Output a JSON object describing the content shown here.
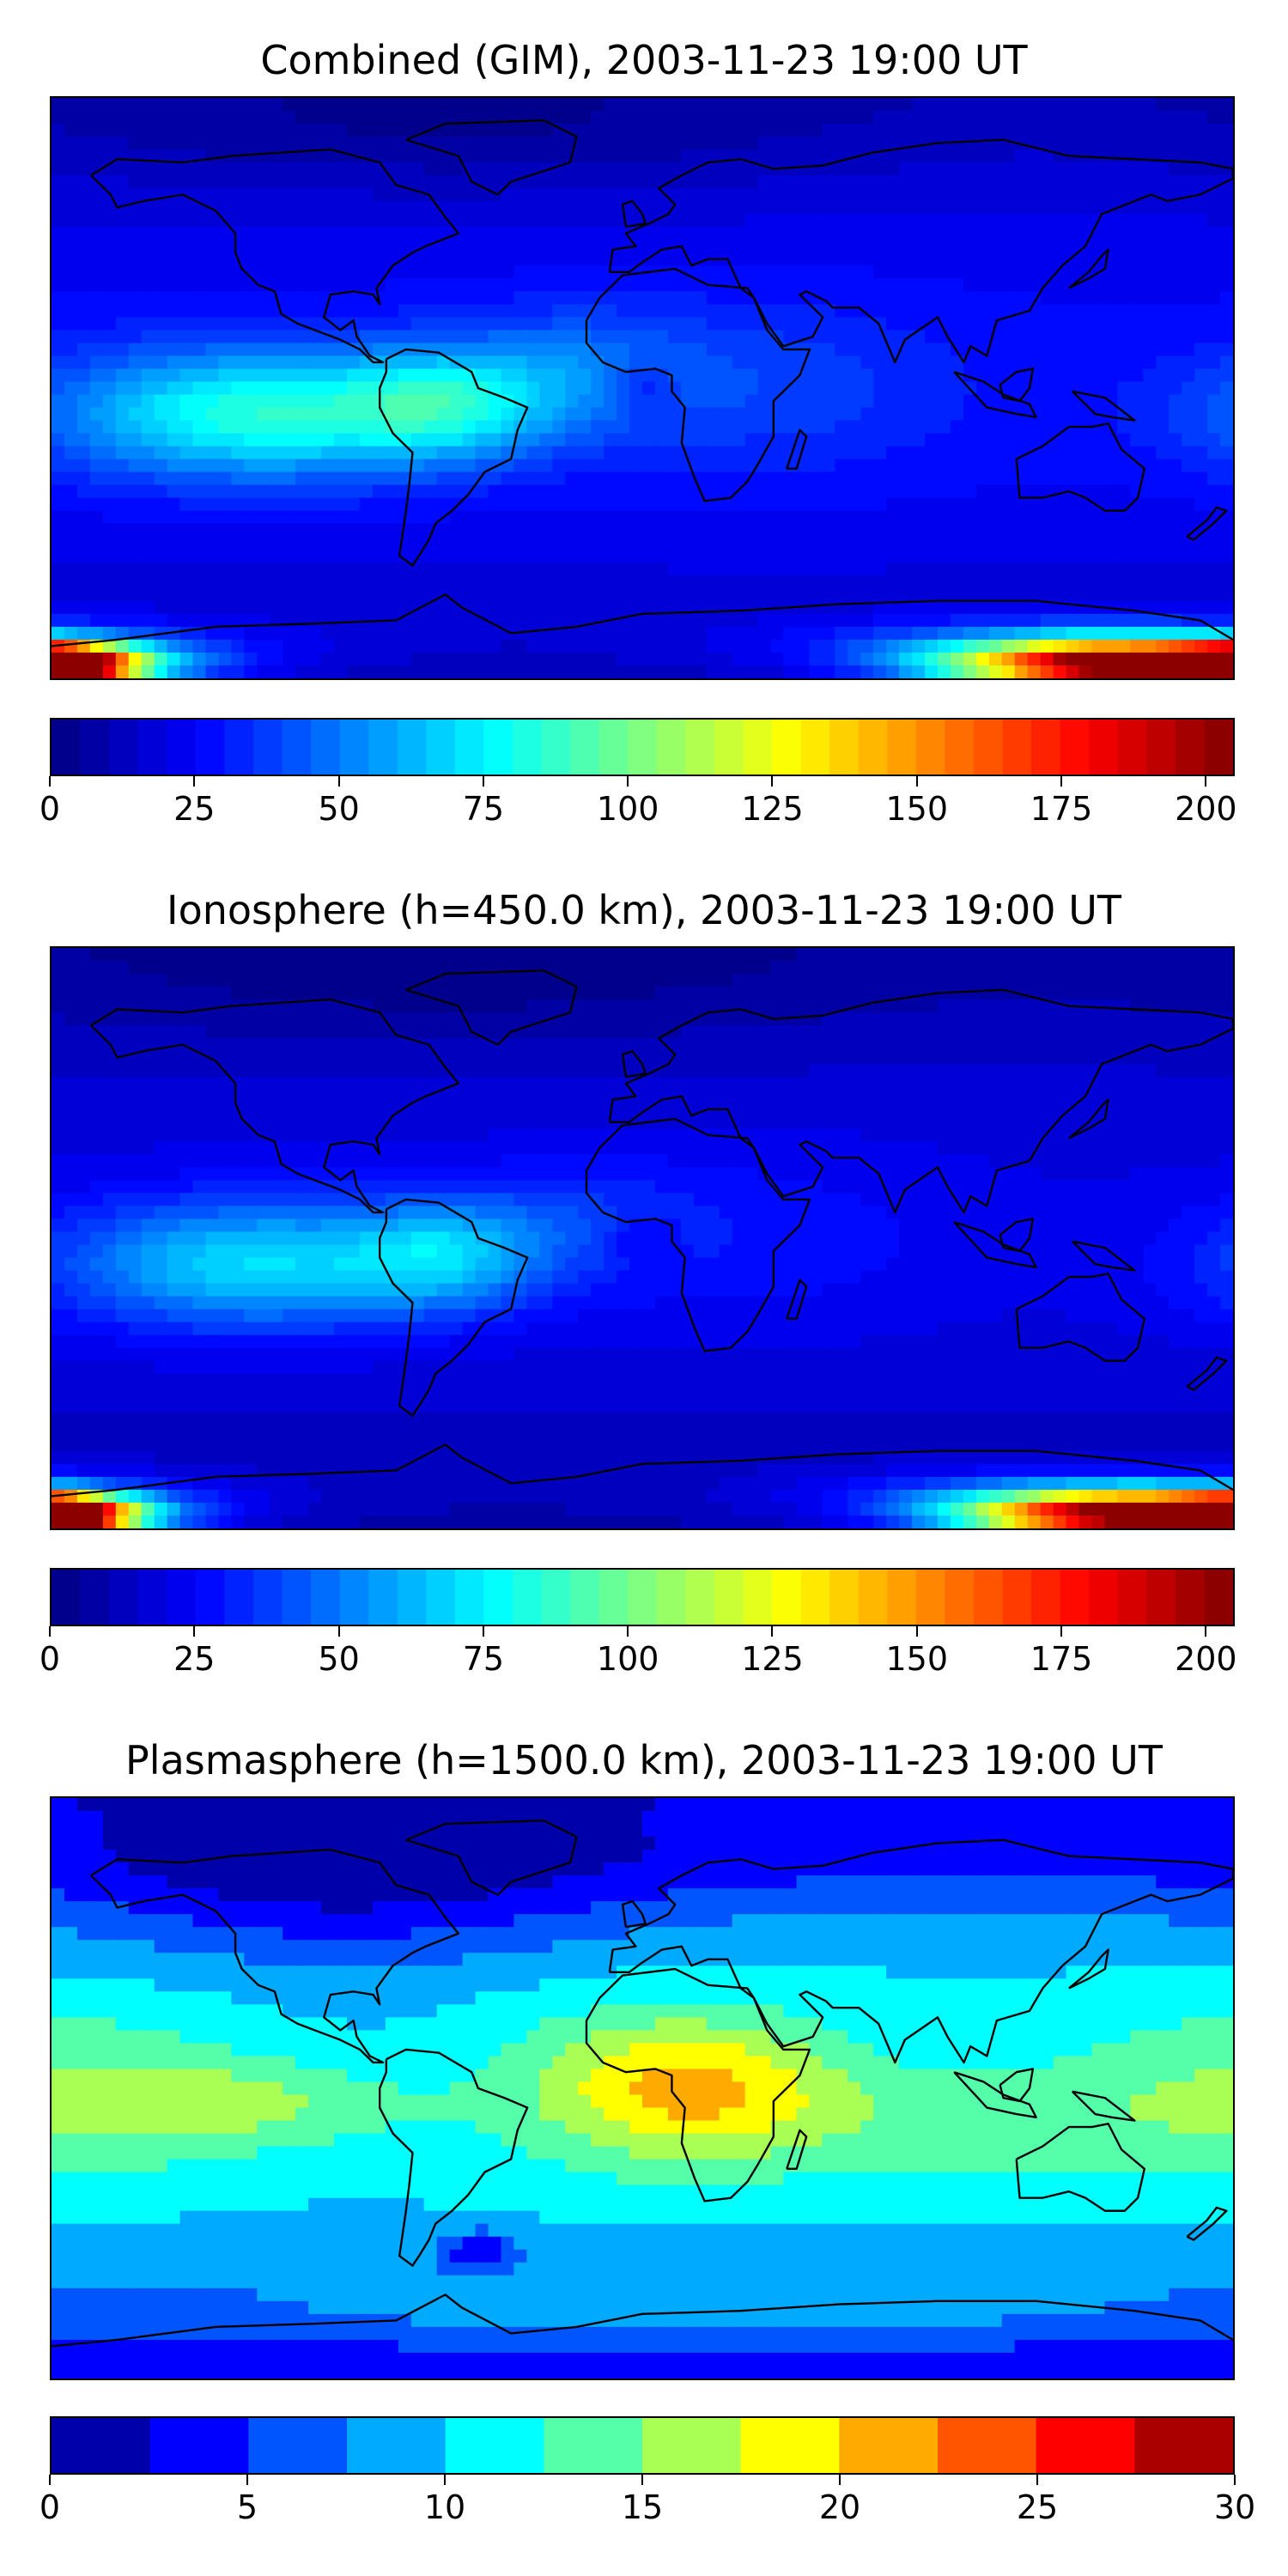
{
  "panels": [
    {
      "title": "Combined (GIM), 2003-11-23 19:00 UT",
      "field": "combined",
      "colorbar": {
        "min": 0,
        "max": 205,
        "levels": 41,
        "ticks": [
          0,
          25,
          50,
          75,
          100,
          125,
          150,
          175,
          200
        ],
        "tick_labels": [
          "0",
          "25",
          "50",
          "75",
          "100",
          "125",
          "150",
          "175",
          "200"
        ]
      }
    },
    {
      "title": "Ionosphere  (h=450.0 km), 2003-11-23 19:00 UT",
      "field": "ionosphere",
      "colorbar": {
        "min": 0,
        "max": 205,
        "levels": 41,
        "ticks": [
          0,
          25,
          50,
          75,
          100,
          125,
          150,
          175,
          200
        ],
        "tick_labels": [
          "0",
          "25",
          "50",
          "75",
          "100",
          "125",
          "150",
          "175",
          "200"
        ]
      }
    },
    {
      "title": "Plasmasphere (h=1500.0 km), 2003-11-23 19:00 UT",
      "field": "plasmasphere",
      "colorbar": {
        "min": 0,
        "max": 30,
        "levels": 12,
        "ticks": [
          0,
          5,
          10,
          15,
          20,
          25,
          30
        ],
        "tick_labels": [
          "0",
          "5",
          "10",
          "15",
          "20",
          "25",
          "30"
        ]
      }
    }
  ],
  "chart_data": [
    {
      "type": "heatmap",
      "title": "Combined (GIM), 2003-11-23 19:00 UT",
      "projection": "global lon/lat map with coastlines",
      "colormap": "jet",
      "value_range": [
        0,
        205
      ],
      "features": [
        {
          "region": "south of South America / Antarctic coast near 160E",
          "value": 200
        },
        {
          "region": "tropical eastern Pacific near 120W 10S",
          "value": 85
        },
        {
          "region": "central South America",
          "value": 80
        },
        {
          "region": "Africa / Indian Ocean",
          "value": 45
        },
        {
          "region": "Northern high latitudes",
          "value": 10
        }
      ]
    },
    {
      "type": "heatmap",
      "title": "Ionosphere  (h=450.0 km), 2003-11-23 19:00 UT",
      "projection": "global lon/lat map with coastlines",
      "colormap": "jet",
      "value_range": [
        0,
        205
      ],
      "features": [
        {
          "region": "south of South America / Antarctic coast near 160E",
          "value": 200
        },
        {
          "region": "tropical eastern Pacific near 120W 10S",
          "value": 75
        },
        {
          "region": "central South America",
          "value": 70
        },
        {
          "region": "Africa / Indian Ocean",
          "value": 35
        },
        {
          "region": "Northern high latitudes",
          "value": 8
        }
      ]
    },
    {
      "type": "heatmap",
      "title": "Plasmasphere (h=1500.0 km), 2003-11-23 19:00 UT",
      "projection": "global lon/lat map with coastlines",
      "colormap": "jet",
      "value_range": [
        0,
        30
      ],
      "features": [
        {
          "region": "central Africa",
          "value": 18
        },
        {
          "region": "tropical eastern Pacific",
          "value": 16
        },
        {
          "region": "tropical band",
          "value": 13
        },
        {
          "region": "Southern ocean band",
          "value": 12
        },
        {
          "region": "Northern high latitudes",
          "value": 2
        }
      ]
    }
  ],
  "colors": {
    "coastline": "#000000",
    "jet": [
      "#000080",
      "#0000ff",
      "#0080ff",
      "#00ffff",
      "#80ff80",
      "#ffff00",
      "#ff8000",
      "#ff0000",
      "#800000"
    ]
  }
}
